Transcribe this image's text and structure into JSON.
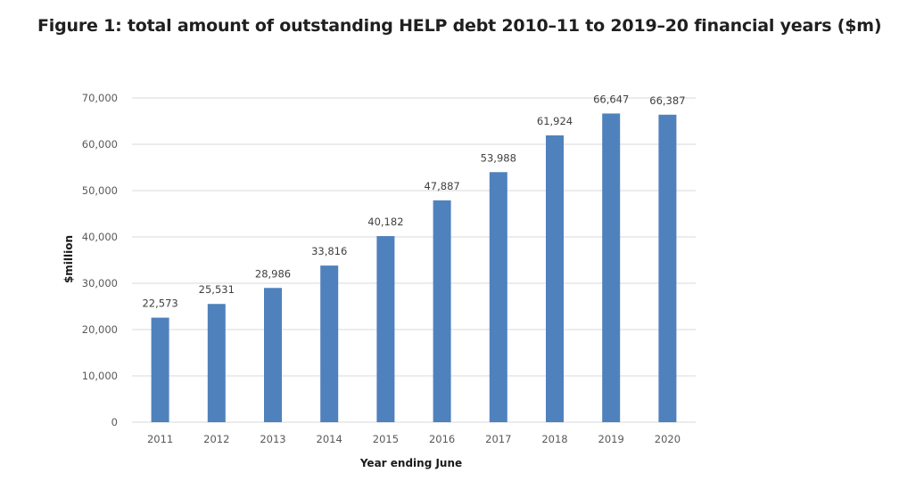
{
  "figure": {
    "title": "Figure 1: total amount of outstanding HELP debt 2010–11 to 2019–20 financial years ($m)"
  },
  "chart_data": {
    "type": "bar",
    "title": "",
    "xlabel": "Year ending June",
    "ylabel": "$million",
    "categories": [
      "2011",
      "2012",
      "2013",
      "2014",
      "2015",
      "2016",
      "2017",
      "2018",
      "2019",
      "2020"
    ],
    "values": [
      22573,
      25531,
      28986,
      33816,
      40182,
      47887,
      53988,
      61924,
      66647,
      66387
    ],
    "data_labels": [
      "22,573",
      "25,531",
      "28,986",
      "33,816",
      "40,182",
      "47,887",
      "53,988",
      "61,924",
      "66,647",
      "66,387"
    ],
    "ylim": [
      0,
      70000
    ],
    "yticks": [
      0,
      10000,
      20000,
      30000,
      40000,
      50000,
      60000,
      70000
    ],
    "ytick_labels": [
      "0",
      "10,000",
      "20,000",
      "30,000",
      "40,000",
      "50,000",
      "60,000",
      "70,000"
    ],
    "grid": true,
    "legend": "none",
    "bar_color": "#4F81BD",
    "grid_color": "#D9D9D9"
  }
}
